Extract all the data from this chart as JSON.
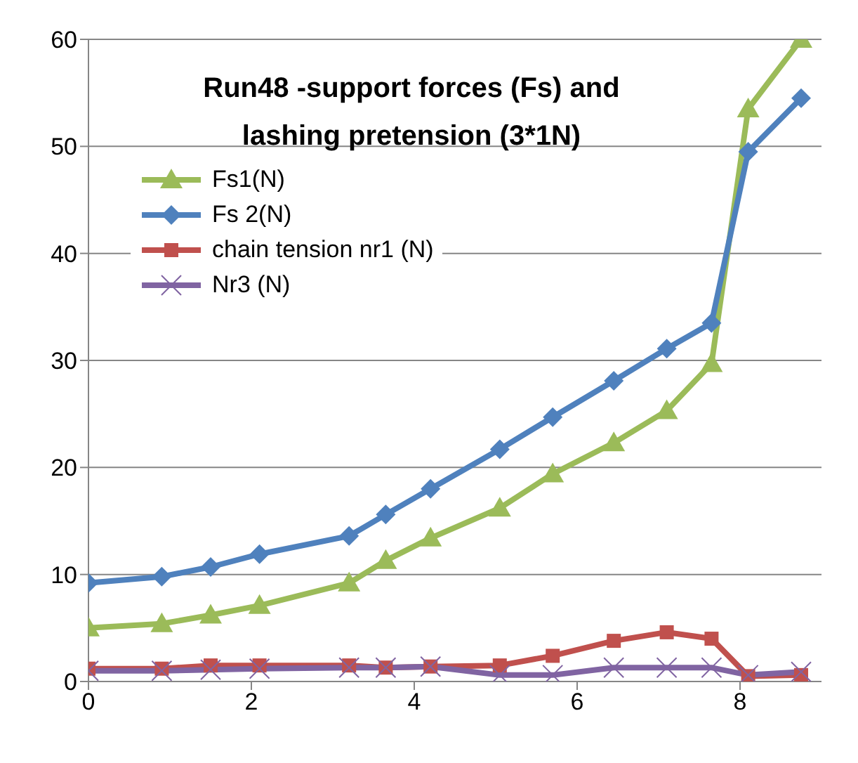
{
  "chart_data": {
    "type": "line",
    "title": "Run48 -support forces (Fs) and lashing pretension (3*1N)",
    "x": [
      0,
      0.9,
      1.5,
      2.1,
      3.2,
      3.65,
      4.2,
      5.05,
      5.7,
      6.45,
      7.1,
      7.65,
      8.1,
      8.75
    ],
    "series": [
      {
        "name": "Fs1(N)",
        "color": "#9bbb59",
        "marker": "triangle",
        "values": [
          5.0,
          5.4,
          6.2,
          7.1,
          9.2,
          11.3,
          13.4,
          16.2,
          19.4,
          22.3,
          25.3,
          29.7,
          53.5,
          60
        ]
      },
      {
        "name": "Fs 2(N)",
        "color": "#4f81bd",
        "marker": "diamond",
        "values": [
          9.2,
          9.8,
          10.7,
          11.9,
          13.6,
          15.6,
          18.0,
          21.7,
          24.7,
          28.1,
          31.1,
          33.5,
          49.5,
          54.5
        ]
      },
      {
        "name": "chain tension nr1 (N)",
        "color": "#c0504d",
        "marker": "square",
        "values": [
          1.2,
          1.2,
          1.5,
          1.5,
          1.5,
          1.3,
          1.4,
          1.5,
          2.4,
          3.8,
          4.6,
          4.0,
          0.5,
          0.6
        ]
      },
      {
        "name": "Nr3 (N)",
        "color": "#8064a2",
        "marker": "cross",
        "values": [
          1.0,
          1.0,
          1.1,
          1.2,
          1.3,
          1.3,
          1.4,
          0.6,
          0.6,
          1.3,
          1.3,
          1.3,
          0.6,
          0.9
        ]
      }
    ],
    "xlim": [
      0,
      9
    ],
    "xticks": [
      0,
      2,
      4,
      6,
      8
    ],
    "ylim": [
      0,
      60
    ],
    "yticks": [
      0,
      10,
      20,
      30,
      40,
      50,
      60
    ],
    "grid": "y",
    "legend": "top left",
    "line_style": "solid"
  }
}
